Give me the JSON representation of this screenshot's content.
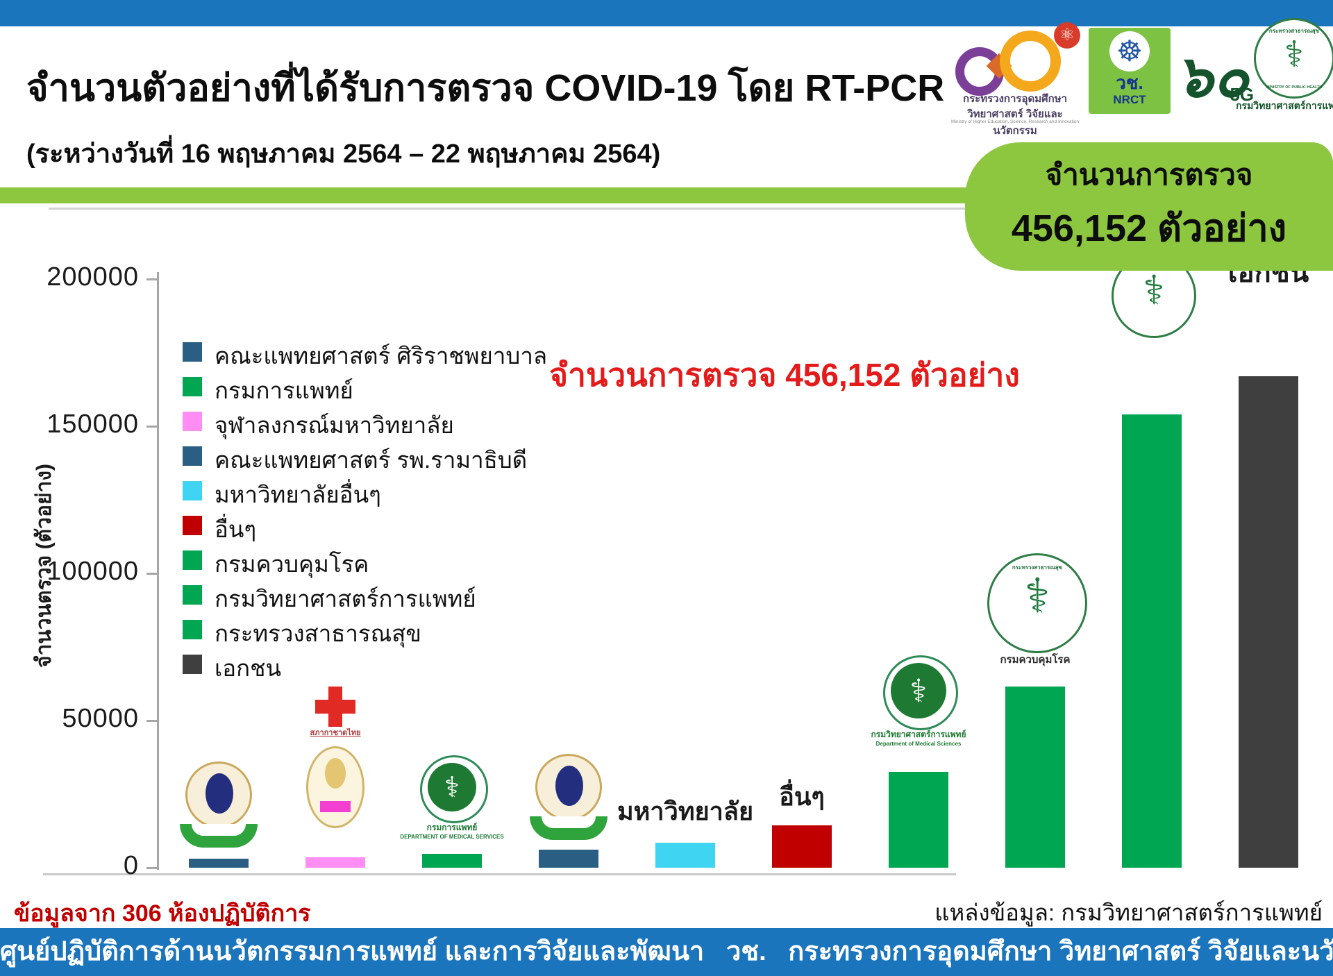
{
  "header": {
    "title": "จำนวนตัวอย่างที่ได้รับการตรวจ COVID-19 โดย RT-PCR",
    "subtitle": "(ระหว่างวันที่ 16 พฤษภาคม 2564 – 22 พฤษภาคม 2564)",
    "logos": {
      "mhesi_line1": "กระทรวงการอุดมศึกษา",
      "mhesi_line2": "วิทยาศาสตร์ วิจัยและนวัตกรรม",
      "mhesi_line3": "Ministry of Higher Education, Science, Research and Innovation",
      "atom_glyph": "⚛",
      "nrct_wheel_glyph": "☸",
      "nrct_th": "วช.",
      "nrct_en": "NRCT",
      "sixty_num": "๖๐",
      "sixty_5g": "5G",
      "moph_arc_top": "กระทรวงสาธารณสุข",
      "moph_glyph": "⚕",
      "moph_arc_bottom": "MINISTRY OF PUBLIC HEALTH",
      "moph_caption": "กรมวิทยาศาสตร์การแพทย์"
    }
  },
  "badge": {
    "line1": "จำนวนการตรวจ",
    "line2": "456,152 ตัวอย่าง"
  },
  "annotation": "จำนวนการตรวจ 456,152 ตัวอย่าง",
  "chart_data": {
    "type": "bar",
    "title": "",
    "xlabel": "",
    "ylabel": "จำนวนตรวจ (ตัวอย่าง)",
    "ylim": [
      0,
      200000
    ],
    "yticks": [
      0,
      50000,
      100000,
      150000,
      200000
    ],
    "grid": false,
    "legend_position": "upper-left-inside",
    "total_label": "456,152",
    "categories": [
      "คณะแพทยศาสตร์ ศิริราชพยาบาล",
      "จุฬาลงกรณ์มหาวิทยาลัย",
      "กรมการแพทย์",
      "คณะแพทยศาสตร์ รพ.รามาธิบดี",
      "มหาวิทยาลัยอื่นๆ",
      "อื่นๆ",
      "กรมวิทยาศาสตร์การแพทย์",
      "กรมควบคุมโรค",
      "กระทรวงสาธารณสุข",
      "เอกชน"
    ],
    "values": [
      3000,
      3500,
      4800,
      6200,
      8500,
      14500,
      32500,
      61500,
      154000,
      167000
    ],
    "bars": [
      {
        "id": "siriraj",
        "name": "คณะแพทยศาสตร์ ศิริราชพยาบาล",
        "value": 3000,
        "color": "#2B5E83",
        "marker": {
          "type": "mahidol"
        }
      },
      {
        "id": "chula",
        "name": "จุฬาลงกรณ์มหาวิทยาลัย",
        "value": 3500,
        "color": "#FF8DF3",
        "marker": {
          "type": "chula",
          "caption": "สภากาชาดไทย"
        }
      },
      {
        "id": "dms-medical-services",
        "name": "กรมการแพทย์",
        "value": 4800,
        "color": "#00A651",
        "marker": {
          "type": "dms",
          "caption1": "กรมการแพทย์",
          "caption2": "DEPARTMENT OF MEDICAL SERVICES"
        }
      },
      {
        "id": "ramathibodi",
        "name": "คณะแพทยศาสตร์ รพ.รามาธิบดี",
        "value": 6200,
        "color": "#2B5E83",
        "marker": {
          "type": "mahidol"
        }
      },
      {
        "id": "other-universities",
        "name": "มหาวิทยาลัยอื่นๆ",
        "value": 8500,
        "color": "#3FD5F2",
        "marker": {
          "type": "label",
          "text": "มหาวิทยาลัย"
        }
      },
      {
        "id": "others",
        "name": "อื่นๆ",
        "value": 14500,
        "color": "#C00000",
        "marker": {
          "type": "label",
          "text": "อื่นๆ"
        }
      },
      {
        "id": "medical-sciences",
        "name": "กรมวิทยาศาสตร์การแพทย์",
        "value": 32500,
        "color": "#00A651",
        "marker": {
          "type": "dms",
          "caption1": "กรมวิทยาศาสตร์การแพทย์",
          "caption2": "Department of Medical Sciences"
        }
      },
      {
        "id": "disease-control",
        "name": "กรมควบคุมโรค",
        "value": 61500,
        "color": "#00A651",
        "marker": {
          "type": "moph",
          "caption": "กรมควบคุมโรค"
        }
      },
      {
        "id": "moph",
        "name": "กระทรวงสาธารณสุข",
        "value": 154000,
        "color": "#00A651",
        "marker": {
          "type": "moph",
          "caption": ""
        }
      },
      {
        "id": "private",
        "name": "เอกชน",
        "value": 167000,
        "color": "#3F3F3F",
        "marker": {
          "type": "label",
          "text": "เอกชน"
        }
      }
    ],
    "legend": [
      {
        "label": "คณะแพทยศาสตร์ ศิริราชพยาบาล",
        "color": "#2B5E83"
      },
      {
        "label": "กรมการแพทย์",
        "color": "#00A651"
      },
      {
        "label": "จุฬาลงกรณ์มหาวิทยาลัย",
        "color": "#FF8DF3"
      },
      {
        "label": "คณะแพทยศาสตร์ รพ.รามาธิบดี",
        "color": "#2B5E83"
      },
      {
        "label": "มหาวิทยาลัยอื่นๆ",
        "color": "#3FD5F2"
      },
      {
        "label": "อื่นๆ",
        "color": "#C00000"
      },
      {
        "label": "กรมควบคุมโรค",
        "color": "#00A651"
      },
      {
        "label": "กรมวิทยาศาสตร์การแพทย์",
        "color": "#00A651"
      },
      {
        "label": "กระทรวงสาธารณสุข",
        "color": "#00A651"
      },
      {
        "label": "เอกชน",
        "color": "#3F3F3F"
      }
    ]
  },
  "footer": {
    "left_note": "ข้อมูลจาก 306 ห้องปฏิบัติการ",
    "source": "แหล่งข้อมูล: กรมวิทยาศาสตร์การแพทย์",
    "bar_text": "ศูนย์ปฏิบัติการด้านนวัตกรรมการแพทย์ และการวิจัยและพัฒนา   วช.   กระทรวงการอุดมศึกษา วิทยาศาสตร์ วิจัยและนวัตกรรม"
  },
  "colors": {
    "accent_blue": "#1B75BC",
    "accent_green": "#8DC63F",
    "bar_green": "#00A651",
    "annotation_red": "#E31B1B"
  }
}
